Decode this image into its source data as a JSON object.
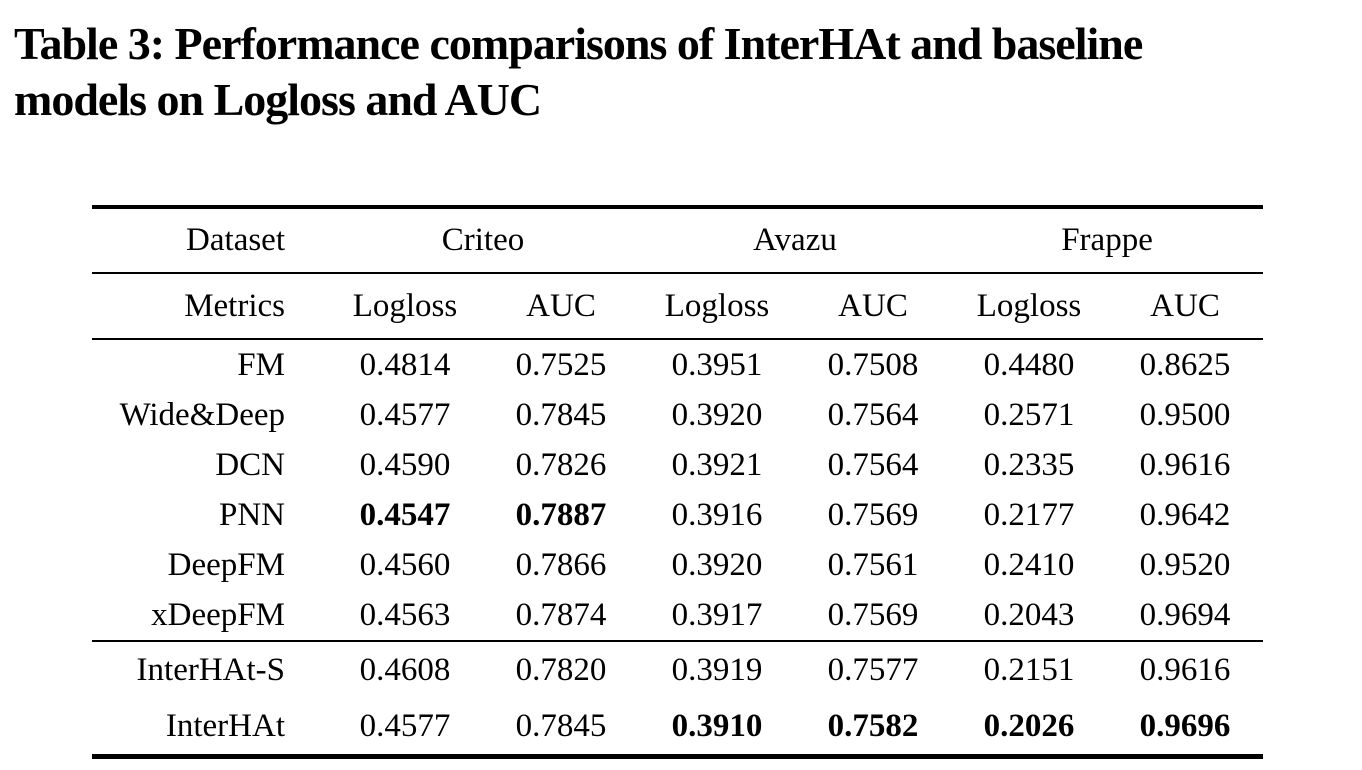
{
  "caption": {
    "lines": [
      "Table 3: Performance comparisons of InterHAt and baseline",
      "models on Logloss and AUC"
    ],
    "full_text": "Table 3: Performance comparisons of InterHAt and baseline models on Logloss and AUC"
  },
  "table": {
    "header": {
      "dataset_label": "Dataset",
      "metrics_label": "Metrics",
      "datasets": [
        "Criteo",
        "Avazu",
        "Frappe"
      ],
      "metric_columns": [
        "Logloss",
        "AUC",
        "Logloss",
        "AUC",
        "Logloss",
        "AUC"
      ]
    },
    "rows": [
      {
        "model": "FM",
        "values": [
          "0.4814",
          "0.7525",
          "0.3951",
          "0.7508",
          "0.4480",
          "0.8625"
        ],
        "bold": []
      },
      {
        "model": "Wide&Deep",
        "values": [
          "0.4577",
          "0.7845",
          "0.3920",
          "0.7564",
          "0.2571",
          "0.9500"
        ],
        "bold": []
      },
      {
        "model": "DCN",
        "values": [
          "0.4590",
          "0.7826",
          "0.3921",
          "0.7564",
          "0.2335",
          "0.9616"
        ],
        "bold": []
      },
      {
        "model": "PNN",
        "values": [
          "0.4547",
          "0.7887",
          "0.3916",
          "0.7569",
          "0.2177",
          "0.9642"
        ],
        "bold": [
          0,
          1
        ]
      },
      {
        "model": "DeepFM",
        "values": [
          "0.4560",
          "0.7866",
          "0.3920",
          "0.7561",
          "0.2410",
          "0.9520"
        ],
        "bold": []
      },
      {
        "model": "xDeepFM",
        "values": [
          "0.4563",
          "0.7874",
          "0.3917",
          "0.7569",
          "0.2043",
          "0.9694"
        ],
        "bold": []
      },
      {
        "model": "InterHAt-S",
        "values": [
          "0.4608",
          "0.7820",
          "0.3919",
          "0.7577",
          "0.2151",
          "0.9616"
        ],
        "bold": []
      },
      {
        "model": "InterHAt",
        "values": [
          "0.4577",
          "0.7845",
          "0.3910",
          "0.7582",
          "0.2026",
          "0.9696"
        ],
        "bold": [
          2,
          3,
          4,
          5
        ]
      }
    ],
    "colors": {
      "text": "#000000",
      "background": "#ffffff",
      "rule": "#000000"
    }
  },
  "chart_data": {
    "type": "table",
    "title": "Table 3: Performance comparisons of InterHAt and baseline models on Logloss and AUC",
    "columns": [
      "Metrics",
      "Criteo Logloss",
      "Criteo AUC",
      "Avazu Logloss",
      "Avazu AUC",
      "Frappe Logloss",
      "Frappe AUC"
    ],
    "rows": [
      [
        "FM",
        "0.4814",
        "0.7525",
        "0.3951",
        "0.7508",
        "0.4480",
        "0.8625"
      ],
      [
        "Wide&Deep",
        "0.4577",
        "0.7845",
        "0.3920",
        "0.7564",
        "0.2571",
        "0.9500"
      ],
      [
        "DCN",
        "0.4590",
        "0.7826",
        "0.3921",
        "0.7564",
        "0.2335",
        "0.9616"
      ],
      [
        "PNN",
        "0.4547",
        "0.7887",
        "0.3916",
        "0.7569",
        "0.2177",
        "0.9642"
      ],
      [
        "DeepFM",
        "0.4560",
        "0.7866",
        "0.3920",
        "0.7561",
        "0.2410",
        "0.9520"
      ],
      [
        "xDeepFM",
        "0.4563",
        "0.7874",
        "0.3917",
        "0.7569",
        "0.2043",
        "0.9694"
      ],
      [
        "InterHAt-S",
        "0.4608",
        "0.7820",
        "0.3919",
        "0.7577",
        "0.2151",
        "0.9616"
      ],
      [
        "InterHAt",
        "0.4577",
        "0.7845",
        "0.3910",
        "0.7582",
        "0.2026",
        "0.9696"
      ]
    ],
    "bold_cells": {
      "PNN": [
        "Criteo Logloss",
        "Criteo AUC"
      ],
      "InterHAt": [
        "Avazu Logloss",
        "Avazu AUC",
        "Frappe Logloss",
        "Frappe AUC"
      ]
    }
  }
}
